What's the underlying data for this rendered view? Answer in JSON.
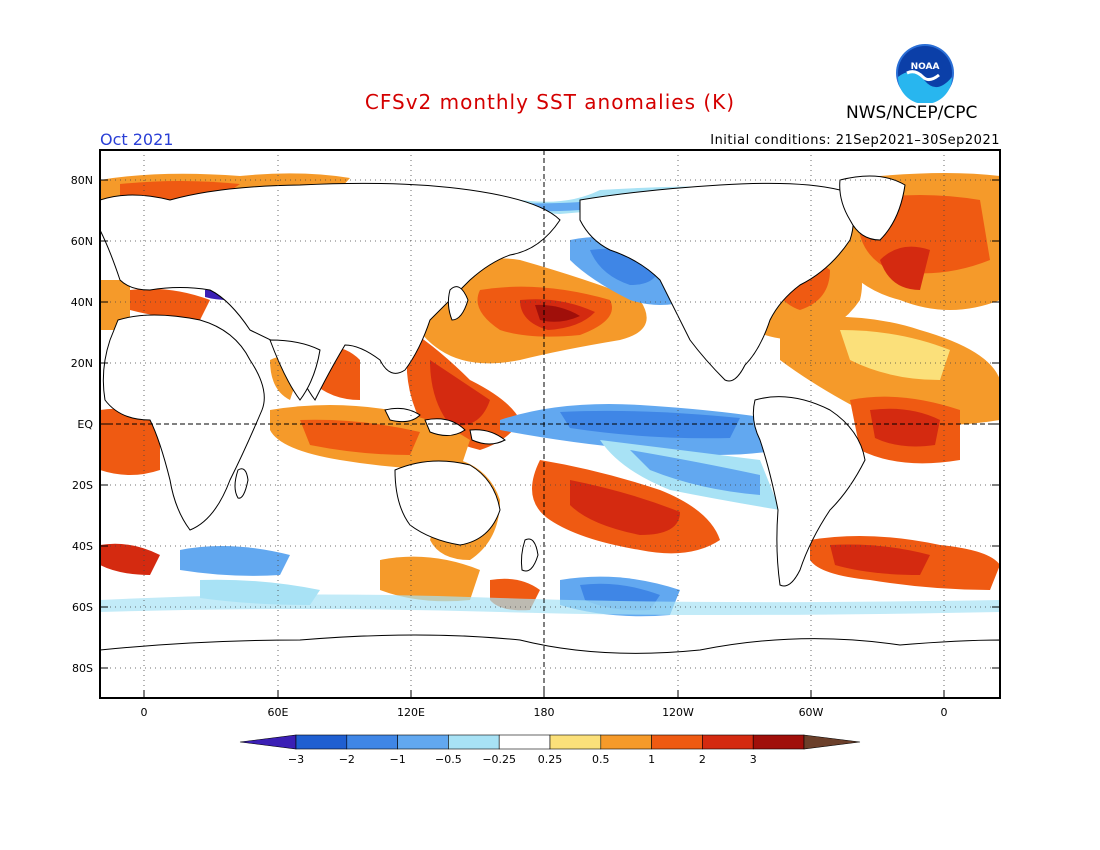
{
  "title": "CFSv2 monthly SST anomalies (K)",
  "agency": "NWS/NCEP/CPC",
  "logo_text": "NOAA",
  "period": "Oct 2021",
  "initial_conditions": "Initial conditions: 21Sep2021–30Sep2021",
  "lat_labels": [
    "80N",
    "60N",
    "40N",
    "20N",
    "EQ",
    "20S",
    "40S",
    "60S",
    "80S"
  ],
  "lon_labels": [
    "0",
    "60E",
    "120E",
    "180",
    "120W",
    "60W",
    "0"
  ],
  "colorbar": {
    "labels": [
      "−3",
      "−2",
      "−1",
      "−0.5",
      "−0.25",
      "0.25",
      "0.5",
      "1",
      "2",
      "3"
    ],
    "colors": [
      "#3b1fb5",
      "#1f5fd1",
      "#3f86e6",
      "#62a8f0",
      "#a8e2f5",
      "#ffffff",
      "#fbe07a",
      "#f59a2a",
      "#ef5a12",
      "#d42a10",
      "#a00f0a",
      "#6b3f2a"
    ]
  }
}
